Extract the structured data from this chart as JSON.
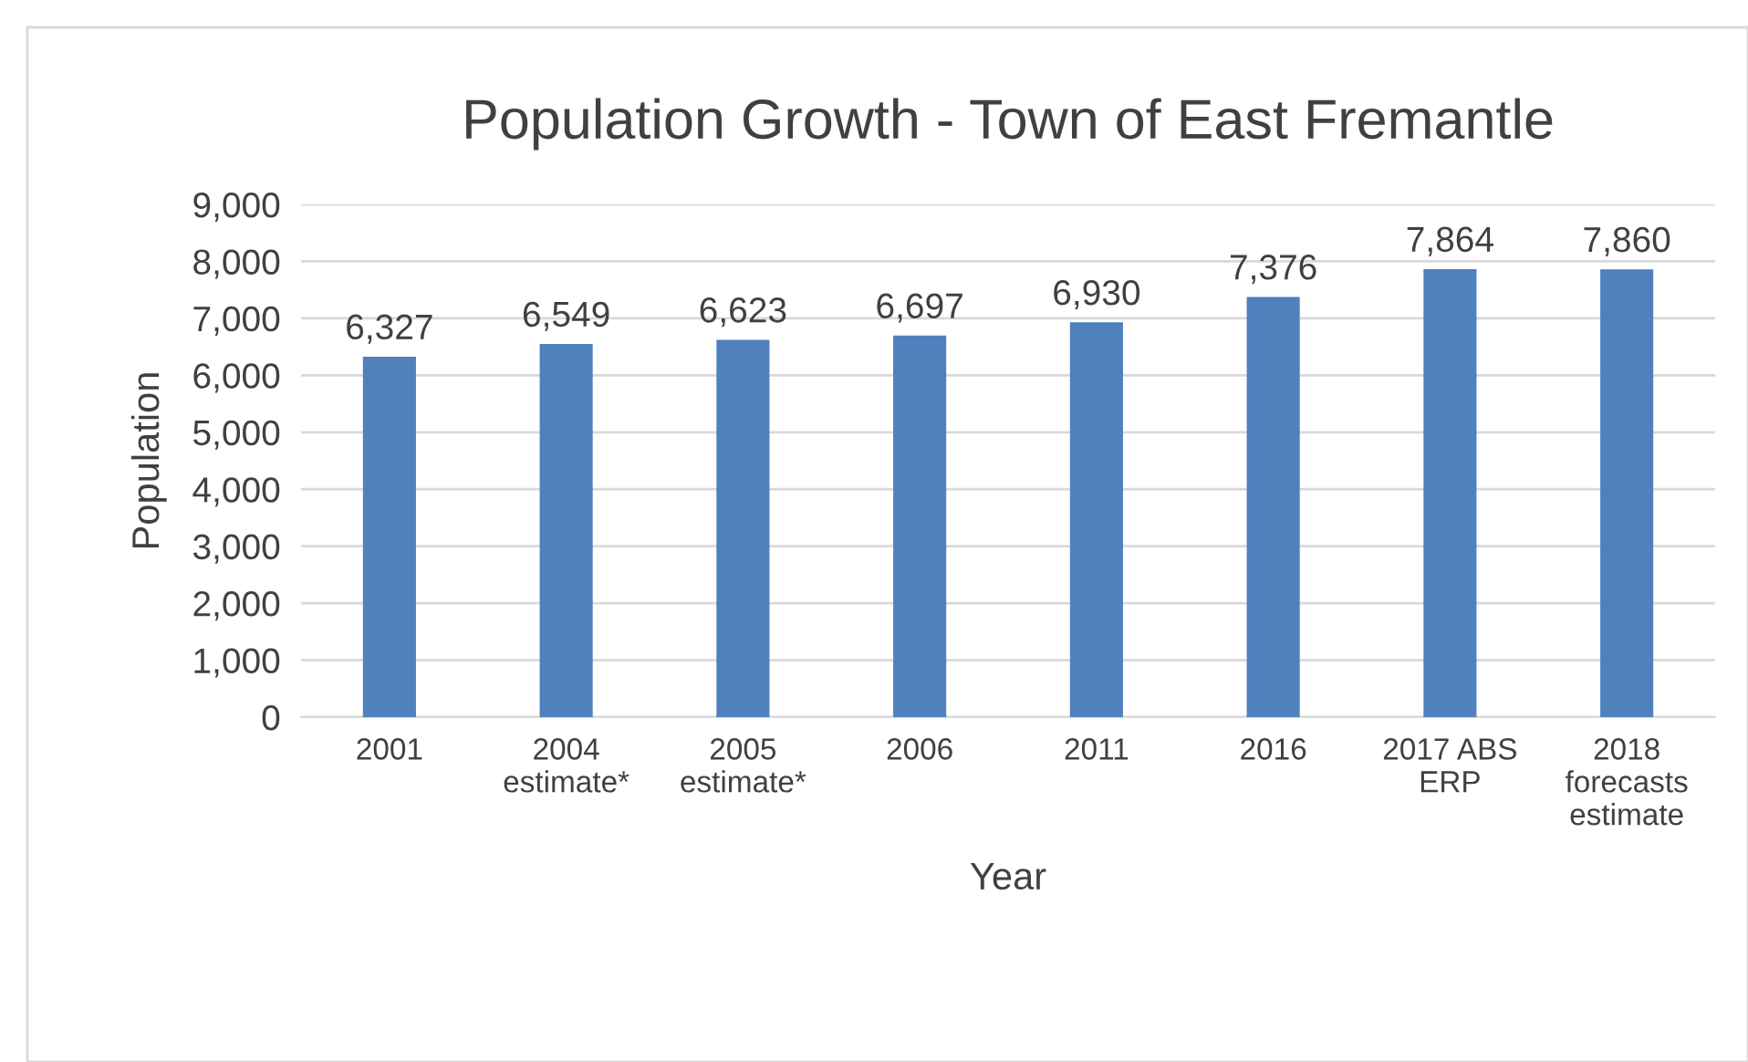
{
  "chart_data": {
    "type": "bar",
    "title": "Population Growth - Town of East Fremantle",
    "xlabel": "Year",
    "ylabel": "Population",
    "categories": [
      "2001",
      "2004\nestimate*",
      "2005\nestimate*",
      "2006",
      "2011",
      "2016",
      "2017 ABS\nERP",
      "2018\nforecasts\nestimate"
    ],
    "values": [
      6327,
      6549,
      6623,
      6697,
      6930,
      7376,
      7864,
      7860
    ],
    "color": "#4f81bd",
    "ylim": [
      0,
      9000
    ],
    "yticks": [
      {
        "value": 0,
        "label": "0"
      },
      {
        "value": 1000,
        "label": "1,000"
      },
      {
        "value": 2000,
        "label": "2,000"
      },
      {
        "value": 3000,
        "label": "3,000"
      },
      {
        "value": 4000,
        "label": "4,000"
      },
      {
        "value": 5000,
        "label": "5,000"
      },
      {
        "value": 6000,
        "label": "6,000"
      },
      {
        "value": 7000,
        "label": "7,000"
      },
      {
        "value": 8000,
        "label": "8,000"
      },
      {
        "value": 9000,
        "label": "9,000"
      }
    ],
    "value_labels": [
      "6,327",
      "6,549",
      "6,623",
      "6,697",
      "6,930",
      "7,376",
      "7,864",
      "7,860"
    ],
    "grid": "y"
  }
}
